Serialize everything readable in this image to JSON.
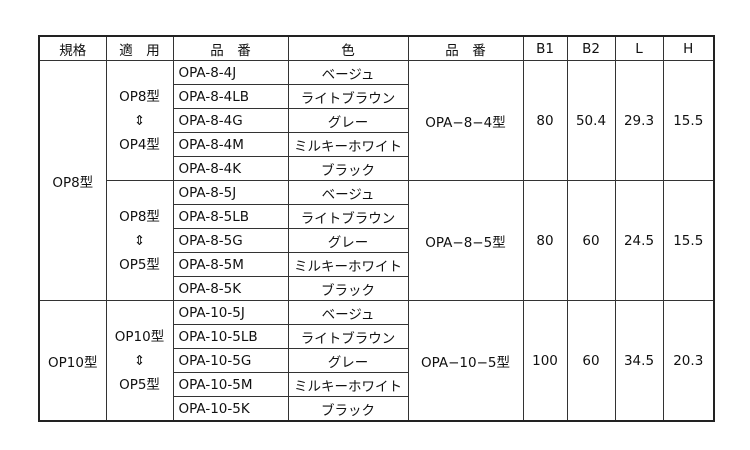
{
  "headers": [
    "規格",
    "適　用",
    "品　番",
    "色",
    "品　番",
    "B1",
    "B2",
    "L",
    "H"
  ],
  "groups": [
    {
      "spec": "OP8型",
      "subgroups": [
        {
          "applies": [
            "OP8型",
            "⇕",
            "OP4型"
          ],
          "model": "OPA−8−4型",
          "B1": "80",
          "B2": "50.4",
          "L": "29.3",
          "H": "15.5",
          "items": [
            [
              "OPA-8-4J",
              "ベージュ"
            ],
            [
              "OPA-8-4LB",
              "ライトブラウン"
            ],
            [
              "OPA-8-4G",
              "グレー"
            ],
            [
              "OPA-8-4M",
              "ミルキーホワイト"
            ],
            [
              "OPA-8-4K",
              "ブラック"
            ]
          ]
        },
        {
          "applies": [
            "OP8型",
            "⇕",
            "OP5型"
          ],
          "model": "OPA−8−5型",
          "B1": "80",
          "B2": "60",
          "L": "24.5",
          "H": "15.5",
          "items": [
            [
              "OPA-8-5J",
              "ベージュ"
            ],
            [
              "OPA-8-5LB",
              "ライトブラウン"
            ],
            [
              "OPA-8-5G",
              "グレー"
            ],
            [
              "OPA-8-5M",
              "ミルキーホワイト"
            ],
            [
              "OPA-8-5K",
              "ブラック"
            ]
          ]
        }
      ]
    },
    {
      "spec": "OP10型",
      "subgroups": [
        {
          "applies": [
            "OP10型",
            "⇕",
            "OP5型"
          ],
          "model": "OPA−10−5型",
          "B1": "100",
          "B2": "60",
          "L": "34.5",
          "H": "20.3",
          "items": [
            [
              "OPA-10-5J",
              "ベージュ"
            ],
            [
              "OPA-10-5LB",
              "ライトブラウン"
            ],
            [
              "OPA-10-5G",
              "グレー"
            ],
            [
              "OPA-10-5M",
              "ミルキーホワイト"
            ],
            [
              "OPA-10-5K",
              "ブラック"
            ]
          ]
        }
      ]
    }
  ]
}
